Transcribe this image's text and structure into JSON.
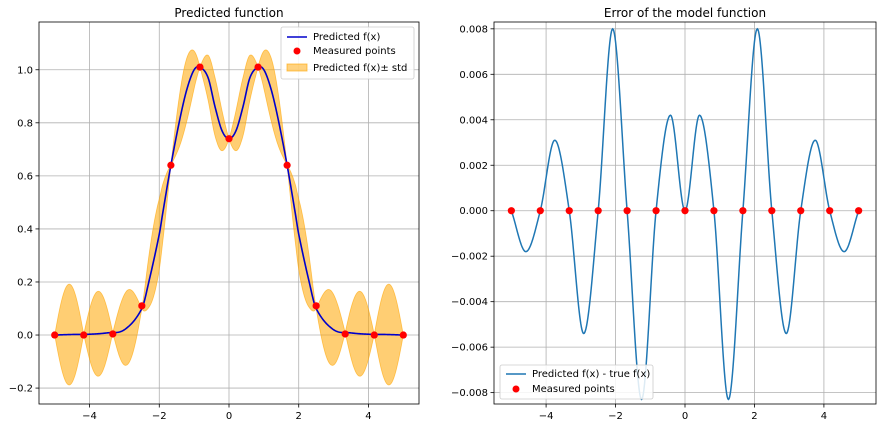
{
  "chart_data": [
    {
      "type": "line",
      "title": "Predicted function",
      "xlabel": "",
      "ylabel": "",
      "xlim": [
        -5.45,
        5.45
      ],
      "ylim": [
        -0.26,
        1.18
      ],
      "xticks": [
        -4,
        -2,
        0,
        2,
        4
      ],
      "xtick_labels": [
        "−4",
        "−2",
        "0",
        "2",
        "4"
      ],
      "yticks": [
        -0.2,
        0.0,
        0.2,
        0.4,
        0.6,
        0.8,
        1.0
      ],
      "ytick_labels": [
        "−0.2",
        "0.0",
        "0.2",
        "0.4",
        "0.6",
        "0.8",
        "1.0"
      ],
      "grid": true,
      "legend_position": "top-right",
      "series": [
        {
          "name": "Predicted f(x)",
          "kind": "line",
          "color": "#0000cc",
          "x": [
            -5,
            -4.5,
            -4,
            -3.5,
            -3,
            -2.5,
            -2.3,
            -2,
            -1.9,
            -1.667,
            -1.4,
            -1.2,
            -1,
            -0.833,
            -0.6,
            -0.4,
            -0.2,
            0,
            0.2,
            0.4,
            0.6,
            0.833,
            1,
            1.2,
            1.4,
            1.667,
            1.9,
            2,
            2.3,
            2.5,
            3,
            3.5,
            4,
            4.5,
            5
          ],
          "y": [
            0.0,
            0.002,
            0.003,
            0.008,
            0.02,
            0.1,
            0.2,
            0.38,
            0.46,
            0.64,
            0.82,
            0.93,
            1.0,
            1.01,
            0.97,
            0.86,
            0.77,
            0.74,
            0.77,
            0.86,
            0.97,
            1.01,
            1.0,
            0.93,
            0.82,
            0.64,
            0.46,
            0.38,
            0.2,
            0.1,
            0.02,
            0.008,
            0.003,
            0.002,
            0.0
          ]
        },
        {
          "name": "Measured points",
          "kind": "scatter",
          "color": "#ff0000",
          "x": [
            -5,
            -4.167,
            -3.333,
            -2.5,
            -1.667,
            -0.833,
            0,
            0.833,
            1.667,
            2.5,
            3.333,
            4.167,
            5
          ],
          "y": [
            0.0,
            0.0,
            0.004,
            0.11,
            0.64,
            1.01,
            0.74,
            1.01,
            0.64,
            0.11,
            0.004,
            0.0,
            0.0
          ]
        },
        {
          "name": "Predicted f(x)± std",
          "kind": "band",
          "color": "#ffa500",
          "std_peaks": {
            "x": [
              -4.583,
              -3.75,
              -2.917,
              -2.083,
              -1.25,
              -0.417,
              0.417,
              1.25,
              2.083,
              2.917,
              3.75,
              4.583
            ],
            "half_width": [
              0.19,
              0.16,
              0.14,
              0.14,
              0.12,
              0.11,
              0.11,
              0.12,
              0.14,
              0.14,
              0.16,
              0.19
            ]
          }
        }
      ]
    },
    {
      "type": "line",
      "title": "Error of the model function",
      "xlabel": "",
      "ylabel": "",
      "xlim": [
        -5.5,
        5.5
      ],
      "ylim": [
        -0.0085,
        0.0083
      ],
      "xticks": [
        -4,
        -2,
        0,
        2,
        4
      ],
      "xtick_labels": [
        "−4",
        "−2",
        "0",
        "2",
        "4"
      ],
      "yticks": [
        -0.008,
        -0.006,
        -0.004,
        -0.002,
        0.0,
        0.002,
        0.004,
        0.006,
        0.008
      ],
      "ytick_labels": [
        "−0.008",
        "−0.006",
        "−0.004",
        "−0.002",
        "0.000",
        "0.002",
        "0.004",
        "0.006",
        "0.008"
      ],
      "grid": true,
      "legend_position": "bottom-left",
      "series": [
        {
          "name": "Predicted f(x) - true f(x)",
          "kind": "line",
          "color": "#1f77b4",
          "x": [
            -5,
            -4.583,
            -4.167,
            -3.75,
            -3.333,
            -2.917,
            -2.5,
            -2.083,
            -1.667,
            -1.25,
            -0.833,
            -0.417,
            0,
            0.417,
            0.833,
            1.25,
            1.667,
            2.083,
            2.5,
            2.917,
            3.333,
            3.75,
            4.167,
            4.583,
            5
          ],
          "y": [
            0.0,
            -0.0018,
            0.0,
            0.0031,
            0.0,
            -0.0054,
            0.0,
            0.008,
            0.0,
            -0.0083,
            0.0,
            0.0042,
            0.0,
            0.0042,
            0.0,
            -0.0083,
            0.0,
            0.008,
            0.0,
            -0.0054,
            0.0,
            0.0031,
            0.0,
            -0.0018,
            0.0
          ]
        },
        {
          "name": "Measured points",
          "kind": "scatter",
          "color": "#ff0000",
          "x": [
            -5,
            -4.167,
            -3.333,
            -2.5,
            -1.667,
            -0.833,
            0,
            0.833,
            1.667,
            2.5,
            3.333,
            4.167,
            5
          ],
          "y": [
            0,
            0,
            0,
            0,
            0,
            0,
            0,
            0,
            0,
            0,
            0,
            0,
            0
          ]
        }
      ]
    }
  ]
}
